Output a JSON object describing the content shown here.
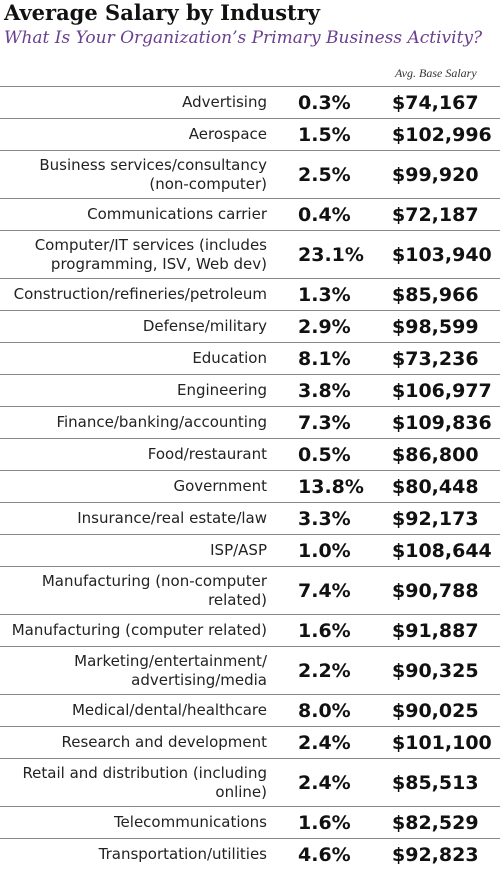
{
  "header": {
    "title": "Average Salary by Industry",
    "subtitle": "What Is Your Organization’s Primary Business Activity?",
    "column_label": "Avg. Base Salary"
  },
  "table": {
    "rows": [
      [
        [
          "Advertising"
        ],
        "0.3%",
        "$74,167"
      ],
      [
        [
          "Aerospace"
        ],
        "1.5%",
        "$102,996"
      ],
      [
        [
          "Business services/consultancy",
          "(non-computer)"
        ],
        "2.5%",
        "$99,920"
      ],
      [
        [
          "Communications carrier"
        ],
        "0.4%",
        "$72,187"
      ],
      [
        [
          "Computer/IT services (includes",
          "programming, ISV, Web dev)"
        ],
        "23.1%",
        "$103,940"
      ],
      [
        [
          "Construction/refineries/petroleum"
        ],
        "1.3%",
        "$85,966"
      ],
      [
        [
          "Defense/military"
        ],
        "2.9%",
        "$98,599"
      ],
      [
        [
          "Education"
        ],
        "8.1%",
        "$73,236"
      ],
      [
        [
          "Engineering"
        ],
        "3.8%",
        "$106,977"
      ],
      [
        [
          "Finance/banking/accounting"
        ],
        "7.3%",
        "$109,836"
      ],
      [
        [
          "Food/restaurant"
        ],
        "0.5%",
        "$86,800"
      ],
      [
        [
          "Government"
        ],
        "13.8%",
        "$80,448"
      ],
      [
        [
          "Insurance/real estate/law"
        ],
        "3.3%",
        "$92,173"
      ],
      [
        [
          "ISP/ASP"
        ],
        "1.0%",
        "$108,644"
      ],
      [
        [
          "Manufacturing (non-computer",
          "related)"
        ],
        "7.4%",
        "$90,788"
      ],
      [
        [
          "Manufacturing (computer related)"
        ],
        "1.6%",
        "$91,887"
      ],
      [
        [
          "Marketing/entertainment/",
          "advertising/media"
        ],
        "2.2%",
        "$90,325"
      ],
      [
        [
          "Medical/dental/healthcare"
        ],
        "8.0%",
        "$90,025"
      ],
      [
        [
          "Research and development"
        ],
        "2.4%",
        "$101,100"
      ],
      [
        [
          "Retail and distribution (including",
          "online)"
        ],
        "2.4%",
        "$85,513"
      ],
      [
        [
          "Telecommunications"
        ],
        "1.6%",
        "$82,529"
      ],
      [
        [
          "Transportation/utilities"
        ],
        "4.6%",
        "$92,823"
      ]
    ]
  }
}
